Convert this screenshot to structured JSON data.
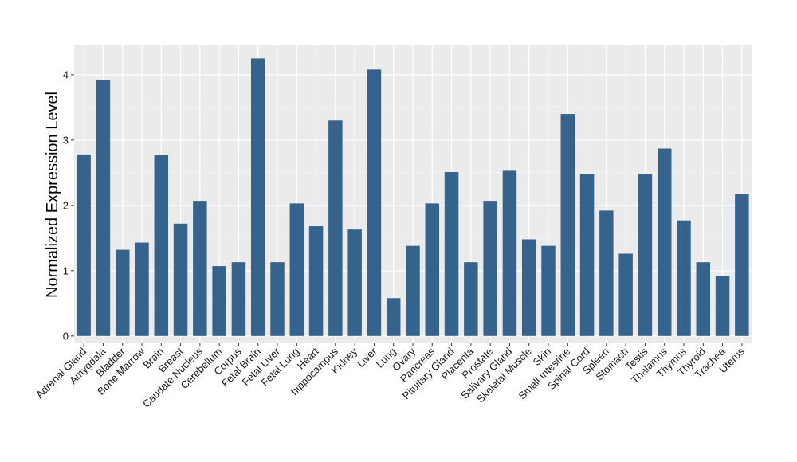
{
  "chart_data": {
    "type": "bar",
    "ylabel": "Normalized Expression Level",
    "xlabel": "",
    "ylim": [
      -0.1,
      4.45
    ],
    "yticks": [
      0,
      1,
      2,
      3,
      4
    ],
    "grid": true,
    "bar_color": "#35638c",
    "panel_color": "#ebebeb",
    "categories": [
      "Adrenal Gland",
      "Amygdala",
      "Bladder",
      "Bone Marrow",
      "Brain",
      "Breast",
      "Caudate Nucleus",
      "Cerebellum",
      "Corpus",
      "Fetal Brain",
      "Fetal Liver",
      "Fetal Lung",
      "Heart",
      "hippocampus",
      "Kidney",
      "Liver",
      "Lung",
      "Ovary",
      "Pancreas",
      "Pituitary Gland",
      "Placenta",
      "Prostate",
      "Salivary Gland",
      "Skeletal Muscle",
      "Skin",
      "Small Intestine",
      "Spinal Cord",
      "Spleen",
      "Stomach",
      "Testis",
      "Thalamus",
      "Thymus",
      "Thyroid",
      "Trachea",
      "Uterus"
    ],
    "values": [
      2.78,
      3.92,
      1.32,
      1.43,
      2.77,
      1.72,
      2.07,
      1.07,
      1.13,
      4.25,
      1.13,
      2.03,
      1.68,
      3.3,
      1.63,
      4.08,
      0.58,
      1.38,
      2.03,
      2.51,
      1.13,
      2.07,
      2.53,
      1.48,
      1.38,
      3.4,
      2.48,
      1.92,
      1.26,
      2.48,
      2.87,
      1.77,
      1.13,
      0.92,
      2.17
    ]
  }
}
